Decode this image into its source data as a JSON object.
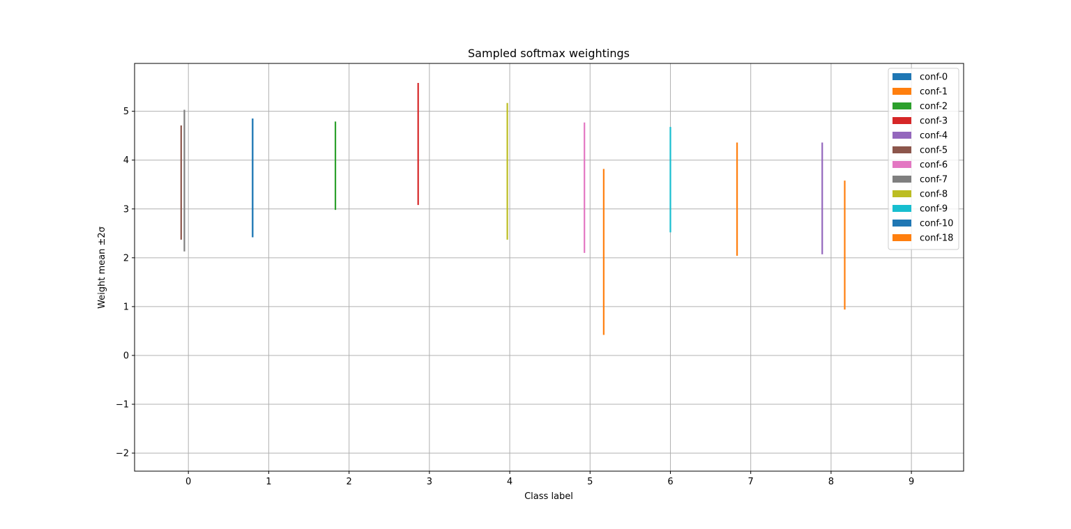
{
  "chart_data": {
    "type": "errorbar",
    "title": "Sampled softmax weightings",
    "xlabel": "Class label",
    "ylabel": "Weight mean ±2σ",
    "xlim": [
      -0.67,
      9.65
    ],
    "ylim": [
      -2.37,
      5.98
    ],
    "xticks": [
      "0",
      "1",
      "2",
      "3",
      "4",
      "5",
      "6",
      "7",
      "8",
      "9"
    ],
    "yticks": [
      "−2",
      "−1",
      "0",
      "1",
      "2",
      "3",
      "4",
      "5"
    ],
    "grid": true,
    "legend_position": "top-right",
    "series": [
      {
        "name": "conf-0",
        "color": "#1f77b4",
        "x": 0.8,
        "low": 2.42,
        "high": 4.85
      },
      {
        "name": "conf-1",
        "color": "#ff7f0e",
        "x": 5.17,
        "low": 0.42,
        "high": 3.82
      },
      {
        "name": "conf-2",
        "color": "#2ca02c",
        "x": 1.83,
        "low": 2.98,
        "high": 4.79
      },
      {
        "name": "conf-3",
        "color": "#d62728",
        "x": 2.86,
        "low": 3.08,
        "high": 5.58
      },
      {
        "name": "conf-4",
        "color": "#9467bd",
        "x": 7.89,
        "low": 2.07,
        "high": 4.36
      },
      {
        "name": "conf-5",
        "color": "#8c564b",
        "x": -0.09,
        "low": 2.37,
        "high": 4.71
      },
      {
        "name": "conf-6",
        "color": "#e377c2",
        "x": 4.93,
        "low": 2.1,
        "high": 4.77
      },
      {
        "name": "conf-7",
        "color": "#7f7f7f",
        "x": -0.05,
        "low": 2.13,
        "high": 5.03
      },
      {
        "name": "conf-8",
        "color": "#bcbd22",
        "x": 3.97,
        "low": 2.37,
        "high": 5.17
      },
      {
        "name": "conf-9",
        "color": "#17becf",
        "x": 6.0,
        "low": 2.52,
        "high": 4.68
      },
      {
        "name": "conf-10",
        "color": "#1f77b4",
        "x": 0.8,
        "low": 2.42,
        "high": 4.85
      },
      {
        "name": "conf-18",
        "color": "#ff7f0e",
        "x": 6.83,
        "low": 2.04,
        "high": 4.36
      },
      {
        "name": "",
        "color": "#ff7f0e",
        "x": 8.17,
        "low": 0.94,
        "high": 3.58
      }
    ],
    "legend": [
      "conf-0",
      "conf-1",
      "conf-2",
      "conf-3",
      "conf-4",
      "conf-5",
      "conf-6",
      "conf-7",
      "conf-8",
      "conf-9",
      "conf-10",
      "conf-18"
    ],
    "legend_colors": [
      "#1f77b4",
      "#ff7f0e",
      "#2ca02c",
      "#d62728",
      "#9467bd",
      "#8c564b",
      "#e377c2",
      "#7f7f7f",
      "#bcbd22",
      "#17becf",
      "#1f77b4",
      "#ff7f0e"
    ]
  }
}
